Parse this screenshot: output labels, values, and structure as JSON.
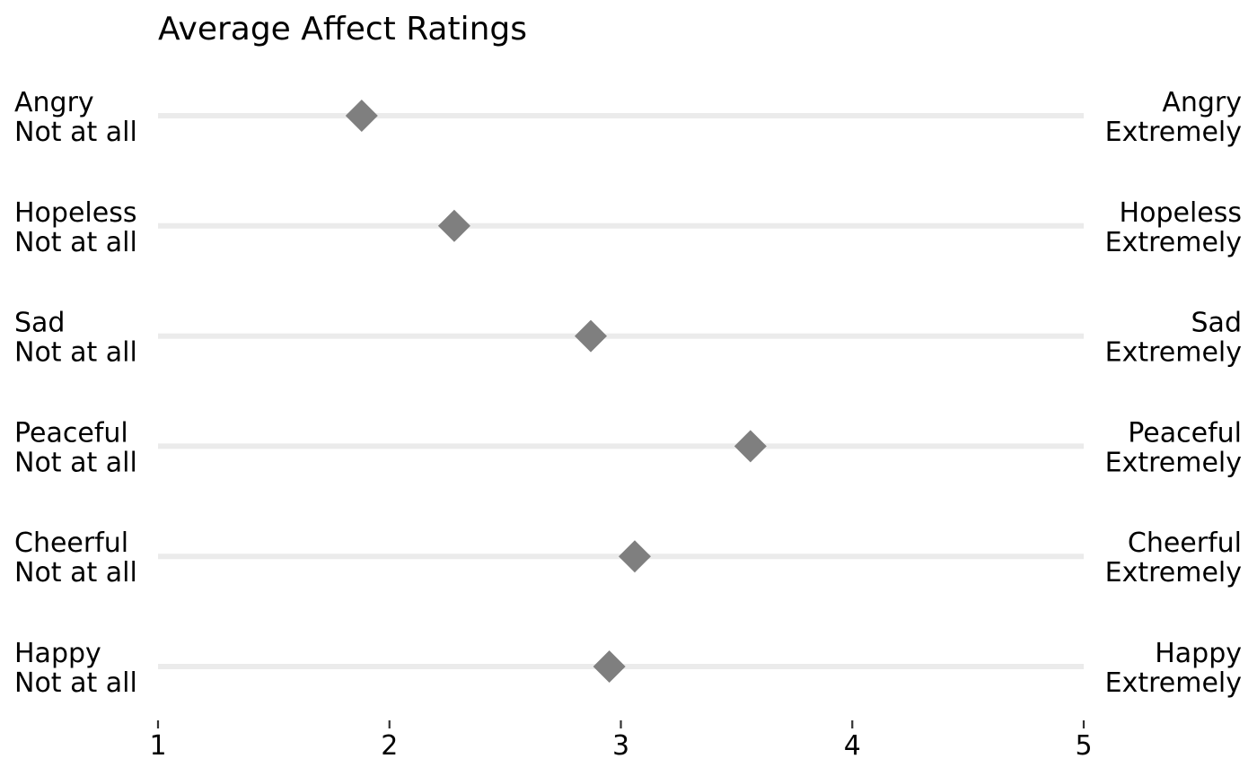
{
  "chart_data": {
    "type": "scatter",
    "title": "Average Affect Ratings",
    "xlim": [
      1,
      5
    ],
    "x_ticks": [
      1,
      2,
      3,
      4,
      5
    ],
    "x_tick_labels": [
      "1",
      "2",
      "3",
      "4",
      "5"
    ],
    "grid": false,
    "marker": "diamond",
    "colors": {
      "marker": "#7f7f7f",
      "track": "#ebebeb",
      "text": "#000000",
      "axis_tick": "#333333"
    },
    "rows": [
      {
        "category": "Angry",
        "low_label": "Not at all",
        "high_label": "Extremely",
        "value": 1.88
      },
      {
        "category": "Hopeless",
        "low_label": "Not at all",
        "high_label": "Extremely",
        "value": 2.28
      },
      {
        "category": "Sad",
        "low_label": "Not at all",
        "high_label": "Extremely",
        "value": 2.87
      },
      {
        "category": "Peaceful",
        "low_label": "Not at all",
        "high_label": "Extremely",
        "value": 3.56
      },
      {
        "category": "Cheerful",
        "low_label": "Not at all",
        "high_label": "Extremely",
        "value": 3.06
      },
      {
        "category": "Happy",
        "low_label": "Not at all",
        "high_label": "Extremely",
        "value": 2.95
      }
    ]
  }
}
